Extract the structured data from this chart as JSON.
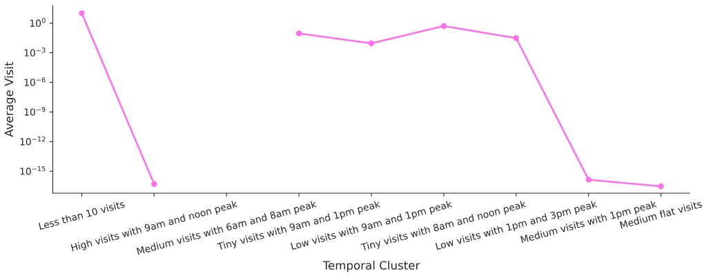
{
  "chart_data": {
    "type": "line",
    "xlabel": "Temporal Cluster",
    "ylabel": "Average Visit",
    "categories": [
      "Less than 10 visits",
      "High visits with 9am and noon peak",
      "Medium visits with 6am and 8am peak",
      "Tiny visits with 9am and 1pm peak",
      "Low visits with 9am and 1pm peak",
      "Tiny visits with 8am and noon peak",
      "Low visits with 1pm and 3pm peak",
      "Medium visits with 1pm peak",
      "Medium flat visits"
    ],
    "series": [
      {
        "color": "#ff6ee8",
        "values": [
          10,
          5e-17,
          null,
          0.09,
          0.009,
          0.5,
          0.03,
          1.4e-16,
          3e-17
        ]
      }
    ],
    "log": "y",
    "ylim": [
      6e-18,
      60
    ],
    "yticks": [
      {
        "value": 1,
        "label": "10$^{0}$"
      },
      {
        "value": 0.001,
        "label": "10$^{−3}$"
      },
      {
        "value": 1e-06,
        "label": "10$^{−6}$"
      },
      {
        "value": 1e-09,
        "label": "10$^{−9}$"
      },
      {
        "value": 1e-12,
        "label": "10$^{−12}$"
      },
      {
        "value": 1e-15,
        "label": "10$^{−15}$"
      }
    ],
    "marker": "circle",
    "line_style": "solid",
    "grid": false
  }
}
